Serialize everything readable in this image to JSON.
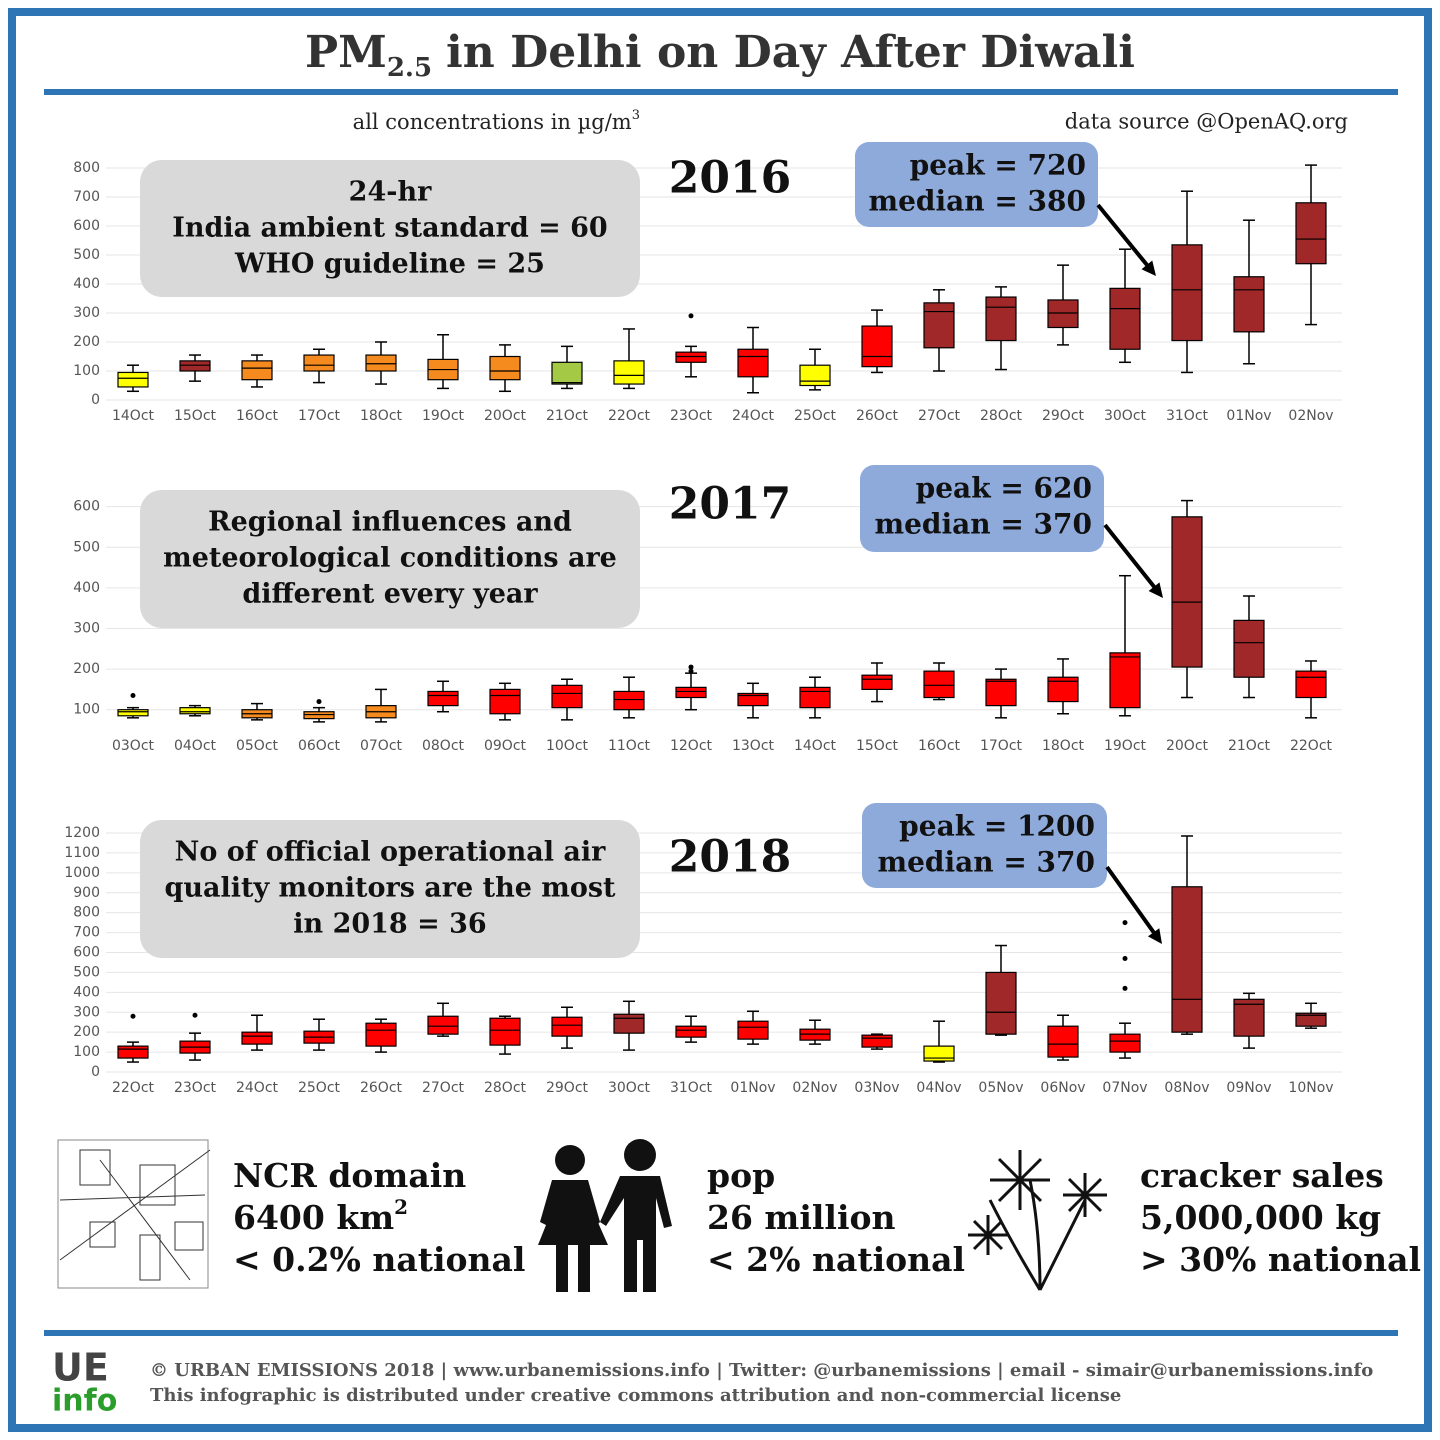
{
  "title_prefix": "PM",
  "title_subscript": "2.5",
  "title_rest": "in Delhi on Day After Diwali",
  "units_note": "all concentrations in µg/m",
  "units_sup": "3",
  "source": "data source @OpenAQ.org",
  "chart_data": [
    {
      "type": "box",
      "title": "2016",
      "annotation": [
        "24-hr",
        "India ambient standard = 60",
        "WHO guideline = 25"
      ],
      "callout": [
        "peak = 720",
        "median = 380"
      ],
      "categories": [
        "14Oct",
        "15Oct",
        "16Oct",
        "17Oct",
        "18Oct",
        "19Oct",
        "20Oct",
        "21Oct",
        "22Oct",
        "23Oct",
        "24Oct",
        "25Oct",
        "26Oct",
        "27Oct",
        "28Oct",
        "29Oct",
        "30Oct",
        "31Oct",
        "01Nov",
        "02Nov"
      ],
      "min": [
        30,
        65,
        45,
        60,
        55,
        40,
        30,
        40,
        40,
        80,
        25,
        35,
        95,
        100,
        105,
        190,
        130,
        95,
        125,
        260
      ],
      "q1": [
        45,
        100,
        70,
        100,
        100,
        70,
        70,
        55,
        55,
        130,
        80,
        50,
        115,
        180,
        205,
        250,
        175,
        205,
        235,
        470
      ],
      "median": [
        75,
        120,
        110,
        120,
        125,
        105,
        100,
        60,
        85,
        150,
        150,
        65,
        150,
        305,
        320,
        300,
        315,
        380,
        380,
        555
      ],
      "q3": [
        95,
        135,
        135,
        155,
        155,
        140,
        150,
        130,
        135,
        165,
        175,
        120,
        255,
        335,
        355,
        345,
        385,
        535,
        425,
        680
      ],
      "max": [
        120,
        155,
        155,
        175,
        200,
        225,
        190,
        185,
        245,
        185,
        250,
        175,
        310,
        380,
        390,
        465,
        520,
        720,
        620,
        810
      ],
      "outliers": [
        [],
        [],
        [],
        [],
        [],
        [],
        [],
        [],
        [],
        [
          290
        ],
        [],
        [],
        [],
        [],
        [],
        [],
        [],
        [],
        [],
        []
      ],
      "colors": [
        "#ffff00",
        "#a02828",
        "#f58a1f",
        "#f58a1f",
        "#f58a1f",
        "#f58a1f",
        "#f58a1f",
        "#a4c944",
        "#ffff00",
        "#ff0000",
        "#ff0000",
        "#ffff00",
        "#ff0000",
        "#a02828",
        "#a02828",
        "#a02828",
        "#a02828",
        "#a02828",
        "#a02828",
        "#a02828"
      ],
      "ylim": [
        0,
        800
      ],
      "yticks": [
        0,
        100,
        200,
        300,
        400,
        500,
        600,
        700,
        800
      ],
      "grid": true
    },
    {
      "type": "box",
      "title": "2017",
      "annotation": [
        "Regional influences and",
        "meteorological conditions are",
        "different every year"
      ],
      "callout": [
        "peak = 620",
        "median = 370"
      ],
      "categories": [
        "03Oct",
        "04Oct",
        "05Oct",
        "06Oct",
        "07Oct",
        "08Oct",
        "09Oct",
        "10Oct",
        "11Oct",
        "12Oct",
        "13Oct",
        "14Oct",
        "15Oct",
        "16Oct",
        "17Oct",
        "18Oct",
        "19Oct",
        "20Oct",
        "21Oct",
        "22Oct"
      ],
      "min": [
        80,
        85,
        75,
        70,
        70,
        95,
        75,
        75,
        80,
        100,
        80,
        80,
        120,
        125,
        80,
        90,
        85,
        130,
        130,
        80
      ],
      "q1": [
        85,
        90,
        80,
        78,
        80,
        110,
        90,
        105,
        100,
        130,
        110,
        105,
        150,
        130,
        110,
        120,
        105,
        205,
        180,
        130
      ],
      "median": [
        95,
        95,
        90,
        88,
        95,
        135,
        135,
        140,
        125,
        145,
        135,
        145,
        175,
        160,
        170,
        170,
        230,
        365,
        265,
        180
      ],
      "q3": [
        100,
        105,
        100,
        95,
        110,
        145,
        150,
        160,
        145,
        155,
        140,
        155,
        185,
        195,
        175,
        180,
        240,
        575,
        320,
        195
      ],
      "max": [
        105,
        110,
        115,
        105,
        150,
        170,
        165,
        175,
        180,
        190,
        165,
        180,
        215,
        215,
        200,
        225,
        430,
        615,
        380,
        220
      ],
      "outliers": [
        [
          135
        ],
        [],
        [],
        [
          120
        ],
        [],
        [],
        [],
        [],
        [],
        [
          195,
          205
        ],
        [],
        [],
        [],
        [],
        [],
        [],
        [],
        [],
        [],
        []
      ],
      "colors": [
        "#ffff00",
        "#ffff00",
        "#f58a1f",
        "#f58a1f",
        "#f58a1f",
        "#ff0000",
        "#ff0000",
        "#ff0000",
        "#ff0000",
        "#ff0000",
        "#ff0000",
        "#ff0000",
        "#ff0000",
        "#ff0000",
        "#ff0000",
        "#ff0000",
        "#ff0000",
        "#a02828",
        "#a02828",
        "#ff0000"
      ],
      "ylim": [
        50,
        630
      ],
      "yticks": [
        100,
        200,
        300,
        400,
        500,
        600
      ],
      "grid": true
    },
    {
      "type": "box",
      "title": "2018",
      "annotation": [
        "No of official operational air",
        "quality monitors are the most",
        "in 2018 = 36"
      ],
      "callout": [
        "peak = 1200",
        "median = 370"
      ],
      "categories": [
        "22Oct",
        "23Oct",
        "24Oct",
        "25Oct",
        "26Oct",
        "27Oct",
        "28Oct",
        "29Oct",
        "30Oct",
        "31Oct",
        "01Nov",
        "02Nov",
        "03Nov",
        "04Nov",
        "05Nov",
        "06Nov",
        "07Nov",
        "08Nov",
        "09Nov",
        "10Nov"
      ],
      "min": [
        50,
        60,
        110,
        110,
        100,
        180,
        90,
        120,
        110,
        150,
        140,
        140,
        115,
        50,
        185,
        60,
        70,
        190,
        120,
        220
      ],
      "q1": [
        70,
        95,
        140,
        145,
        130,
        190,
        135,
        180,
        195,
        175,
        165,
        160,
        125,
        55,
        190,
        75,
        100,
        200,
        180,
        230
      ],
      "median": [
        115,
        125,
        180,
        175,
        210,
        230,
        210,
        235,
        270,
        210,
        225,
        190,
        170,
        70,
        300,
        140,
        155,
        365,
        340,
        285
      ],
      "q3": [
        130,
        155,
        200,
        205,
        245,
        280,
        270,
        275,
        290,
        230,
        255,
        215,
        185,
        130,
        500,
        230,
        190,
        930,
        365,
        295
      ],
      "max": [
        150,
        195,
        285,
        265,
        265,
        345,
        280,
        325,
        355,
        280,
        305,
        260,
        190,
        255,
        635,
        285,
        245,
        1185,
        395,
        345
      ],
      "outliers": [
        [
          280
        ],
        [
          285
        ],
        [],
        [],
        [],
        [],
        [],
        [],
        [],
        [],
        [],
        [],
        [],
        [],
        [],
        [],
        [
          420,
          570,
          750
        ],
        [],
        [],
        []
      ],
      "colors": [
        "#ff0000",
        "#ff0000",
        "#ff0000",
        "#ff0000",
        "#ff0000",
        "#ff0000",
        "#ff0000",
        "#ff0000",
        "#a02828",
        "#ff0000",
        "#ff0000",
        "#ff0000",
        "#ff0000",
        "#ffff00",
        "#a02828",
        "#ff0000",
        "#ff0000",
        "#a02828",
        "#a02828",
        "#a02828"
      ],
      "ylim": [
        0,
        1200
      ],
      "yticks": [
        0,
        100,
        200,
        300,
        400,
        500,
        600,
        700,
        800,
        900,
        1000,
        1100,
        1200
      ],
      "grid": true
    }
  ],
  "stats": [
    {
      "title": "NCR domain",
      "value": "6400 km",
      "value_sup": "2",
      "share": "< 0.2% national"
    },
    {
      "title": "pop",
      "value": "26 million",
      "share": "< 2% national"
    },
    {
      "title": "cracker sales",
      "value": "5,000,000 kg",
      "share": "> 30% national"
    }
  ],
  "footer": {
    "logo_top": "UE",
    "logo_bottom": "info",
    "credits": "© URBAN EMISSIONS 2018 | www.urbanemissions.info | Twitter: @urbanemissions | email - simair@urbanemissions.info",
    "license": "This infographic is distributed under creative commons attribution and non-commercial license"
  }
}
